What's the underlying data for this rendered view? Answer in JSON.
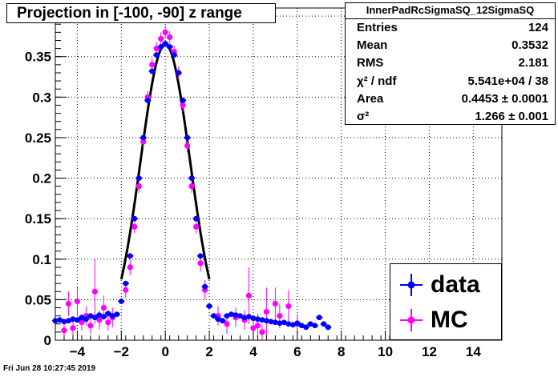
{
  "title": "Projection in [-100, -90] z range",
  "footer_timestamp": "Fri Jun 28 10:27:45 2019",
  "stats": {
    "name": "InnerPadRcSigmaSQ_12SigmaSQ",
    "rows": [
      {
        "label": "Entries",
        "value": "124"
      },
      {
        "label": "Mean",
        "value": "0.3532"
      },
      {
        "label": "RMS",
        "value": "2.181"
      },
      {
        "label": "χ² / ndf",
        "value": "5.541e+04 / 38"
      },
      {
        "label": "Area",
        "value": "0.4453 ± 0.0001"
      },
      {
        "label": "σ²",
        "value": "1.266 ± 0.001"
      }
    ]
  },
  "legend": [
    {
      "label": "data",
      "color": "#0000ff"
    },
    {
      "label": "MC",
      "color": "#ff00ff"
    }
  ],
  "colors": {
    "data": "#0000ff",
    "mc": "#ff00ff",
    "fit": "#000000",
    "grid": "#000000"
  },
  "chart_data": {
    "type": "scatter",
    "xlim": [
      -5,
      15.3
    ],
    "ylim": [
      0,
      0.41
    ],
    "xticks": [
      -4,
      -2,
      0,
      2,
      4,
      6,
      8,
      10,
      12,
      14
    ],
    "yticks": [
      0,
      0.05,
      0.1,
      0.15,
      0.2,
      0.25,
      0.3,
      0.35,
      0.4
    ],
    "xtick_labels": [
      "−4",
      "−2",
      "0",
      "2",
      "4",
      "6",
      "8",
      "10",
      "12",
      "14"
    ],
    "ytick_labels": [
      "0",
      "0.05",
      "0.1",
      "0.15",
      "0.2",
      "0.25",
      "0.3",
      "0.35",
      "0.4"
    ],
    "grid": true,
    "legend_position": "bottom-right",
    "fit": {
      "type": "gaussian",
      "amplitude": 0.365,
      "mean": 0.0,
      "sigma2": 1.266,
      "range": [
        -2.0,
        2.0
      ]
    },
    "series": [
      {
        "name": "data",
        "x": [
          -5.0,
          -4.8,
          -4.6,
          -4.4,
          -4.2,
          -4.0,
          -3.8,
          -3.6,
          -3.4,
          -3.2,
          -3.0,
          -2.8,
          -2.6,
          -2.4,
          -2.2,
          -2.0,
          -1.8,
          -1.6,
          -1.4,
          -1.2,
          -1.0,
          -0.8,
          -0.6,
          -0.4,
          -0.2,
          0.0,
          0.2,
          0.4,
          0.6,
          0.8,
          1.0,
          1.2,
          1.4,
          1.6,
          1.8,
          2.0,
          2.2,
          2.4,
          2.6,
          2.8,
          3.0,
          3.2,
          3.4,
          3.6,
          3.8,
          4.0,
          4.2,
          4.4,
          4.6,
          4.8,
          5.0,
          5.2,
          5.4,
          5.6,
          5.8,
          6.0,
          6.2,
          6.4,
          6.6,
          6.8,
          7.0,
          7.2,
          7.4
        ],
        "y": [
          0.024,
          0.025,
          0.023,
          0.024,
          0.026,
          0.025,
          0.028,
          0.026,
          0.03,
          0.028,
          0.031,
          0.029,
          0.033,
          0.03,
          0.032,
          0.048,
          0.07,
          0.104,
          0.15,
          0.2,
          0.25,
          0.296,
          0.332,
          0.352,
          0.362,
          0.366,
          0.362,
          0.352,
          0.33,
          0.296,
          0.25,
          0.2,
          0.15,
          0.104,
          0.066,
          0.042,
          0.03,
          0.026,
          0.024,
          0.03,
          0.032,
          0.031,
          0.03,
          0.028,
          0.029,
          0.027,
          0.026,
          0.025,
          0.024,
          0.023,
          0.022,
          0.021,
          0.022,
          0.02,
          0.019,
          0.021,
          0.018,
          0.016,
          0.02,
          0.018,
          0.028,
          0.02,
          0.016
        ]
      },
      {
        "name": "MC",
        "x": [
          -4.6,
          -4.4,
          -4.2,
          -4.0,
          -3.8,
          -3.6,
          -3.4,
          -3.2,
          -3.0,
          -2.8,
          -2.6,
          -2.4,
          -1.8,
          -1.6,
          -1.4,
          -1.2,
          -1.0,
          -0.8,
          -0.6,
          -0.4,
          -0.2,
          0.0,
          0.2,
          0.4,
          0.6,
          0.8,
          1.0,
          1.2,
          1.4,
          1.6,
          1.8,
          2.4,
          2.8,
          3.2,
          3.6,
          3.8,
          4.0,
          4.2,
          4.4,
          4.6,
          5.0,
          5.2,
          5.6,
          6.0
        ],
        "y": [
          0.012,
          0.045,
          0.015,
          0.048,
          0.022,
          0.03,
          0.018,
          0.06,
          0.025,
          0.04,
          0.022,
          0.028,
          0.062,
          0.09,
          0.14,
          0.19,
          0.245,
          0.3,
          0.34,
          0.36,
          0.372,
          0.38,
          0.374,
          0.356,
          0.33,
          0.29,
          0.24,
          0.19,
          0.14,
          0.095,
          0.062,
          0.03,
          0.02,
          0.028,
          0.025,
          0.055,
          0.015,
          0.018,
          0.01,
          0.035,
          0.045,
          0.03,
          0.042,
          0.02
        ],
        "err": [
          0.008,
          0.015,
          0.01,
          0.018,
          0.01,
          0.012,
          0.01,
          0.04,
          0.012,
          0.015,
          0.01,
          0.012,
          0.01,
          0.01,
          0.008,
          0.008,
          0.008,
          0.008,
          0.008,
          0.008,
          0.008,
          0.008,
          0.008,
          0.008,
          0.008,
          0.008,
          0.008,
          0.008,
          0.008,
          0.01,
          0.012,
          0.012,
          0.012,
          0.012,
          0.012,
          0.035,
          0.012,
          0.015,
          0.01,
          0.03,
          0.02,
          0.015,
          0.02,
          0.012
        ]
      }
    ]
  }
}
